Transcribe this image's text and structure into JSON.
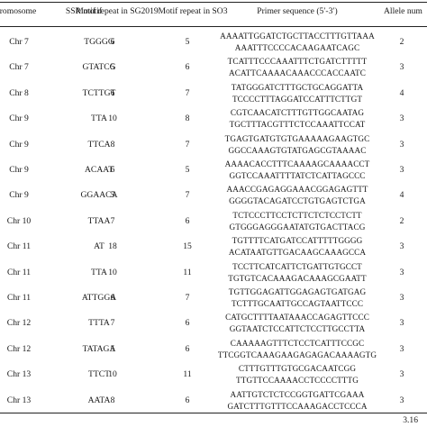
{
  "table": {
    "headers": {
      "chromosome": "romosome",
      "motif": "SSR motif",
      "sg2019": "Motif repeat in SG2019",
      "so3": "Motif repeat in SO3",
      "primer": "Primer sequence (5′-3′)",
      "allele": "Allele num"
    },
    "rows": [
      {
        "chr": "Chr 7",
        "motif": "TGGGG",
        "sg": "6",
        "so": "5",
        "fwd": "AAAATTGGATCTGCTTACCTTTGTTAAA",
        "rev": "AAATTTCCCCACAAGAATCAGC",
        "allele": "2"
      },
      {
        "chr": "Chr 7",
        "motif": "GTATCG",
        "sg": "5",
        "so": "6",
        "fwd": "TCATTTCCCAAATTTCTGATCTTTTT",
        "rev": "ACATTCAAAACAAACCCACCAATC",
        "allele": "3"
      },
      {
        "chr": "Chr 8",
        "motif": "TCTTGT",
        "sg": "6",
        "so": "7",
        "fwd": "TATGGGATCTTTGCTGCAGGATTA",
        "rev": "TCCCCTTTAGGATCCATTTCTTGT",
        "allele": "4"
      },
      {
        "chr": "Chr 9",
        "motif": "TTA",
        "sg": "10",
        "so": "8",
        "fwd": "CGTCAACATCTTTGTTGGCAATAG",
        "rev": "TGCTTTACGTTTCTCCAAATTCCAT",
        "allele": "3"
      },
      {
        "chr": "Chr 9",
        "motif": "TTCA",
        "sg": "8",
        "so": "7",
        "fwd": "TGAGTGATGTGTGAAAAAGAAGTGC",
        "rev": "GGCCAAAGTGTATGAGCGTAAAAC",
        "allele": "3"
      },
      {
        "chr": "Chr 9",
        "motif": "ACAAT",
        "sg": "6",
        "so": "5",
        "fwd": "AAAACACCTTTCAAAAGCAAAACCT",
        "rev": "GGTCCAAATTTTATCTCATTAGCCC",
        "allele": "3"
      },
      {
        "chr": "Chr 9",
        "motif": "GGAACA",
        "sg": "5",
        "so": "7",
        "fwd": "AAACCGAGAGGAAACGGAGAGTTT",
        "rev": "GGGGTACAGATCCTGTGAGTCTGA",
        "allele": "4"
      },
      {
        "chr": "Chr 10",
        "motif": "TTAA",
        "sg": "7",
        "so": "6",
        "fwd": "TCTCCCTTCCTCTTCTCTCCTCTT",
        "rev": "GTGGGAGGGAATATGTGACTTACG",
        "allele": "2"
      },
      {
        "chr": "Chr 11",
        "motif": "AT",
        "sg": "18",
        "so": "15",
        "fwd": "TGTTTTCATGATCCATTTTTGGGG",
        "rev": "ACATAATGTTGACAAGCAAAGCCA",
        "allele": "3"
      },
      {
        "chr": "Chr 11",
        "motif": "TTA",
        "sg": "10",
        "so": "11",
        "fwd": "TCCTTCATCATTCTGATTGTGCCT",
        "rev": "TGTGTCACAAAGACAAAGCGAATT",
        "allele": "3"
      },
      {
        "chr": "Chr 11",
        "motif": "ATTGGA",
        "sg": "6",
        "so": "7",
        "fwd": "TGTTGGAGATTGGAGAGTGATGAG",
        "rev": "TCTTTGCAATTGCCAGTAATTCCC",
        "allele": "3"
      },
      {
        "chr": "Chr 12",
        "motif": "TTTA",
        "sg": "7",
        "so": "6",
        "fwd": "CATGCTTTTAATAAACCAGAGTTCCC",
        "rev": "GGTAATCTCCATTCTCCTTGCCTTA",
        "allele": "3"
      },
      {
        "chr": "Chr 12",
        "motif": "TATAGA",
        "sg": "5",
        "so": "6",
        "fwd": "CAAAAAGTTTCTCCTCATTTCCGC",
        "rev": "TTCGGTCAAAGAAGAGAGACAAAAGTG",
        "allele": "3"
      },
      {
        "chr": "Chr 13",
        "motif": "TTCT",
        "sg": "10",
        "so": "11",
        "fwd": "CTTTGTTTGTGCGACAATCGG",
        "rev": "TTGTTCCAAAACCTCCCCTTTG",
        "allele": "3"
      },
      {
        "chr": "Chr 13",
        "motif": "AATA",
        "sg": "8",
        "so": "6",
        "fwd": "AATTGTCTCTCCGGTGATTCGAAA",
        "rev": "GATCTTTGTTTCCAAAGACCTCCCA",
        "allele": "3"
      }
    ],
    "footer": "3.16"
  }
}
